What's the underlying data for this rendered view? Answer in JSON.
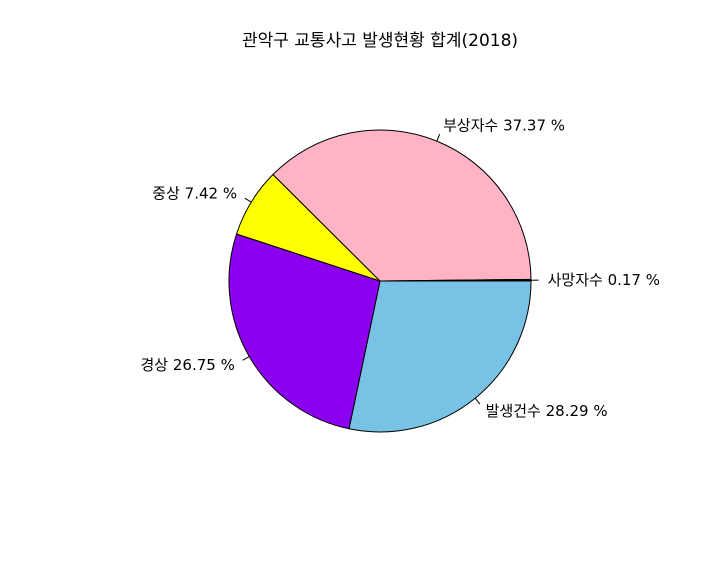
{
  "chart_data": {
    "type": "pie",
    "title": "관악구 교통사고 발생현황 합계(2018)",
    "slices": [
      {
        "name": "발생건수",
        "value": 28.29,
        "label": "발생건수 28.29 %",
        "color": "#78c2e5"
      },
      {
        "name": "경상",
        "value": 26.75,
        "label": "경상 26.75 %",
        "color": "#8b00ee"
      },
      {
        "name": "중상",
        "value": 7.42,
        "label": "중상 7.42 %",
        "color": "#ffff00"
      },
      {
        "name": "부상자수",
        "value": 37.37,
        "label": "부상자수 37.37 %",
        "color": "#ffb3c4"
      },
      {
        "name": "사망자수",
        "value": 0.17,
        "label": "사망자수 0.17 %",
        "color": "#000000"
      }
    ],
    "direction": "clockwise",
    "start_angle": "3 o'clock",
    "legend": "none"
  }
}
